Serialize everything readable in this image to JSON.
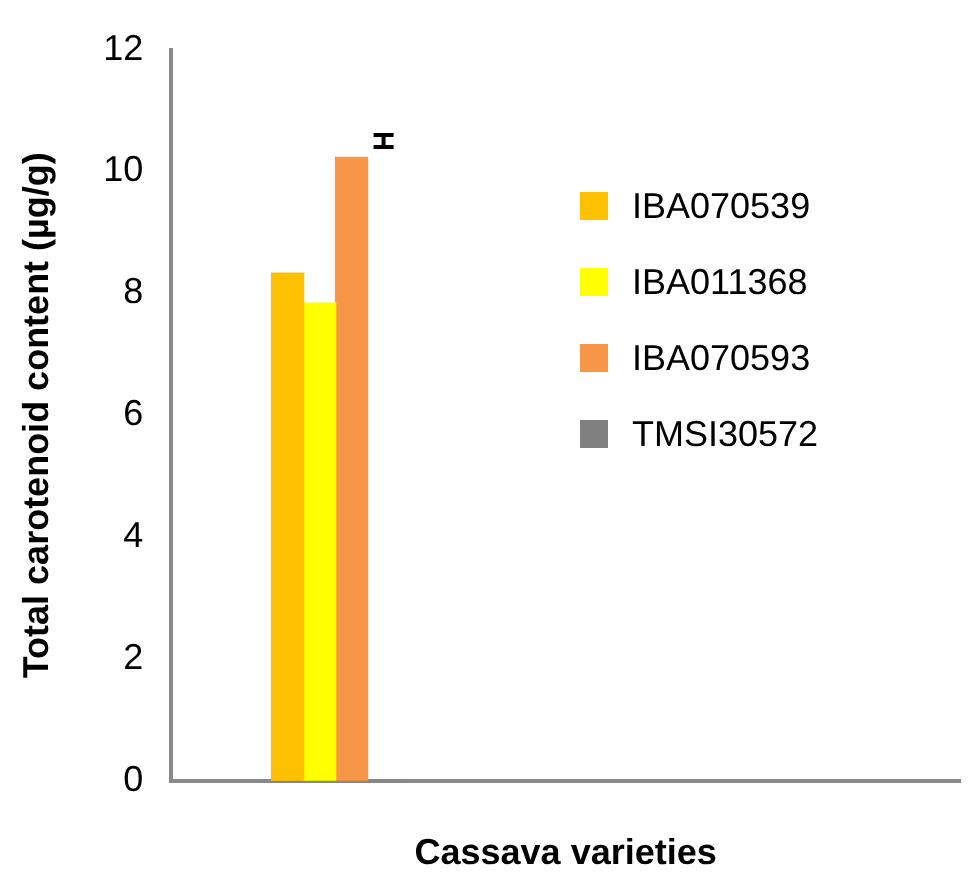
{
  "chart_data": {
    "type": "bar",
    "xlabel": "Cassava varieties",
    "ylabel": "Total carotenoid content (µg/g)",
    "categories": [
      null
    ],
    "series": [
      {
        "name": "IBA070539",
        "color": "#ffc000",
        "values": [
          8.33
        ]
      },
      {
        "name": "IBA011368",
        "color": "#ffff00",
        "values": [
          7.84
        ]
      },
      {
        "name": "IBA070593",
        "color": "#f79646",
        "values": [
          10.23
        ]
      },
      {
        "name": "TMSI30572",
        "color": "#808080",
        "values": [
          0
        ],
        "errors": [
          [
            10.4,
            10.6
          ]
        ]
      }
    ],
    "ylim": [
      0,
      12
    ],
    "yticks": [
      0,
      2,
      4,
      6,
      8,
      10,
      12
    ],
    "grid": false,
    "legend": "right"
  }
}
